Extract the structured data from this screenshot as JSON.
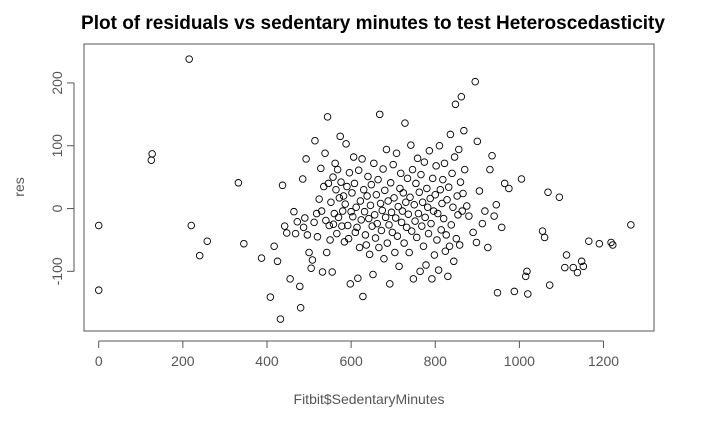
{
  "chart_data": {
    "type": "scatter",
    "title": "Plot of residuals vs sedentary minutes to test Heteroscedasticity",
    "xlabel": "Fitbit$SedentaryMinutes",
    "ylabel": "res",
    "xlim": [
      -35,
      1320
    ],
    "ylim": [
      -195,
      262
    ],
    "xticks": [
      "0",
      "200",
      "400",
      "600",
      "800",
      "1000",
      "1200"
    ],
    "xtick_values": [
      0,
      200,
      400,
      600,
      800,
      1000,
      1200
    ],
    "yticks": [
      "-100",
      "0",
      "100",
      "200"
    ],
    "ytick_values": [
      -100,
      0,
      100,
      200
    ],
    "grid": false,
    "marker": "open-circle",
    "marker_color": "#000000",
    "points": [
      [
        0,
        -27
      ],
      [
        0,
        -130
      ],
      [
        125,
        77
      ],
      [
        127,
        87
      ],
      [
        215,
        238
      ],
      [
        220,
        -27
      ],
      [
        240,
        -75
      ],
      [
        258,
        -52
      ],
      [
        332,
        41
      ],
      [
        345,
        -56
      ],
      [
        387,
        -79
      ],
      [
        408,
        -141
      ],
      [
        417,
        -60
      ],
      [
        425,
        -84
      ],
      [
        432,
        -176
      ],
      [
        437,
        37
      ],
      [
        442,
        -28
      ],
      [
        447,
        -39
      ],
      [
        455,
        -112
      ],
      [
        464,
        -5
      ],
      [
        468,
        -40
      ],
      [
        472,
        -21
      ],
      [
        478,
        -124
      ],
      [
        480,
        -158
      ],
      [
        485,
        47
      ],
      [
        487,
        -30
      ],
      [
        490,
        -15
      ],
      [
        493,
        79
      ],
      [
        496,
        -42
      ],
      [
        500,
        -70
      ],
      [
        505,
        -95
      ],
      [
        508,
        -82
      ],
      [
        512,
        -22
      ],
      [
        514,
        108
      ],
      [
        518,
        -8
      ],
      [
        520,
        -45
      ],
      [
        524,
        15
      ],
      [
        528,
        64
      ],
      [
        530,
        -4
      ],
      [
        532,
        -101
      ],
      [
        535,
        35
      ],
      [
        538,
        88
      ],
      [
        540,
        -19
      ],
      [
        542,
        -70
      ],
      [
        544,
        146
      ],
      [
        546,
        40
      ],
      [
        548,
        -27
      ],
      [
        550,
        -50
      ],
      [
        552,
        10
      ],
      [
        555,
        -101
      ],
      [
        557,
        50
      ],
      [
        558,
        -25
      ],
      [
        560,
        -8
      ],
      [
        562,
        72
      ],
      [
        564,
        30
      ],
      [
        566,
        -40
      ],
      [
        568,
        62
      ],
      [
        570,
        -14
      ],
      [
        572,
        17
      ],
      [
        574,
        115
      ],
      [
        576,
        42
      ],
      [
        578,
        -28
      ],
      [
        580,
        -4
      ],
      [
        582,
        20
      ],
      [
        584,
        -53
      ],
      [
        586,
        7
      ],
      [
        588,
        103
      ],
      [
        590,
        35
      ],
      [
        592,
        -27
      ],
      [
        594,
        -48
      ],
      [
        596,
        57
      ],
      [
        598,
        -120
      ],
      [
        600,
        -5
      ],
      [
        602,
        25
      ],
      [
        604,
        -13
      ],
      [
        606,
        82
      ],
      [
        608,
        40
      ],
      [
        610,
        -38
      ],
      [
        612,
        2
      ],
      [
        614,
        -30
      ],
      [
        616,
        -111
      ],
      [
        618,
        61
      ],
      [
        620,
        -62
      ],
      [
        622,
        12
      ],
      [
        624,
        -18
      ],
      [
        626,
        79
      ],
      [
        628,
        -140
      ],
      [
        630,
        30
      ],
      [
        632,
        -5
      ],
      [
        634,
        -42
      ],
      [
        636,
        -58
      ],
      [
        638,
        20
      ],
      [
        640,
        51
      ],
      [
        642,
        -16
      ],
      [
        644,
        -73
      ],
      [
        646,
        5
      ],
      [
        648,
        38
      ],
      [
        650,
        -28
      ],
      [
        652,
        -105
      ],
      [
        654,
        72
      ],
      [
        656,
        -10
      ],
      [
        658,
        -47
      ],
      [
        660,
        22
      ],
      [
        662,
        -24
      ],
      [
        664,
        46
      ],
      [
        666,
        -62
      ],
      [
        668,
        150
      ],
      [
        670,
        8
      ],
      [
        672,
        -35
      ],
      [
        674,
        -3
      ],
      [
        676,
        63
      ],
      [
        678,
        -80
      ],
      [
        680,
        29
      ],
      [
        682,
        -14
      ],
      [
        684,
        94
      ],
      [
        686,
        -55
      ],
      [
        688,
        12
      ],
      [
        690,
        -26
      ],
      [
        692,
        -120
      ],
      [
        694,
        41
      ],
      [
        696,
        -6
      ],
      [
        698,
        -38
      ],
      [
        700,
        70
      ],
      [
        702,
        17
      ],
      [
        704,
        -70
      ],
      [
        706,
        -15
      ],
      [
        708,
        88
      ],
      [
        710,
        -44
      ],
      [
        712,
        3
      ],
      [
        714,
        -92
      ],
      [
        716,
        32
      ],
      [
        718,
        56
      ],
      [
        720,
        -22
      ],
      [
        722,
        -4
      ],
      [
        724,
        25
      ],
      [
        726,
        -55
      ],
      [
        728,
        136
      ],
      [
        730,
        10
      ],
      [
        732,
        -30
      ],
      [
        734,
        48
      ],
      [
        736,
        -9
      ],
      [
        738,
        -70
      ],
      [
        740,
        18
      ],
      [
        742,
        101
      ],
      [
        744,
        -36
      ],
      [
        746,
        62
      ],
      [
        748,
        -112
      ],
      [
        750,
        6
      ],
      [
        752,
        -20
      ],
      [
        754,
        40
      ],
      [
        756,
        -46
      ],
      [
        758,
        80
      ],
      [
        760,
        -8
      ],
      [
        762,
        26
      ],
      [
        764,
        -100
      ],
      [
        766,
        54
      ],
      [
        768,
        -28
      ],
      [
        770,
        10
      ],
      [
        772,
        -60
      ],
      [
        774,
        74
      ],
      [
        776,
        -14
      ],
      [
        778,
        -90
      ],
      [
        780,
        32
      ],
      [
        782,
        2
      ],
      [
        784,
        -40
      ],
      [
        786,
        92
      ],
      [
        788,
        16
      ],
      [
        790,
        -24
      ],
      [
        792,
        -112
      ],
      [
        794,
        48
      ],
      [
        796,
        -4
      ],
      [
        798,
        -74
      ],
      [
        800,
        22
      ],
      [
        802,
        68
      ],
      [
        804,
        -50
      ],
      [
        806,
        -8
      ],
      [
        808,
        -98
      ],
      [
        810,
        100
      ],
      [
        812,
        30
      ],
      [
        814,
        -34
      ],
      [
        816,
        8
      ],
      [
        818,
        46
      ],
      [
        820,
        -16
      ],
      [
        822,
        72
      ],
      [
        824,
        -68
      ],
      [
        826,
        -42
      ],
      [
        828,
        14
      ],
      [
        830,
        -108
      ],
      [
        832,
        34
      ],
      [
        834,
        -60
      ],
      [
        836,
        118
      ],
      [
        838,
        -26
      ],
      [
        840,
        56
      ],
      [
        842,
        2
      ],
      [
        844,
        -84
      ],
      [
        846,
        82
      ],
      [
        848,
        166
      ],
      [
        850,
        -48
      ],
      [
        852,
        20
      ],
      [
        854,
        -10
      ],
      [
        856,
        94
      ],
      [
        858,
        -58
      ],
      [
        860,
        42
      ],
      [
        862,
        178
      ],
      [
        864,
        -4
      ],
      [
        866,
        24
      ],
      [
        868,
        124
      ],
      [
        870,
        62
      ],
      [
        875,
        4
      ],
      [
        880,
        -12
      ],
      [
        890,
        -38
      ],
      [
        895,
        202
      ],
      [
        898,
        -54
      ],
      [
        900,
        107
      ],
      [
        905,
        28
      ],
      [
        912,
        -24
      ],
      [
        918,
        -4
      ],
      [
        925,
        -62
      ],
      [
        930,
        62
      ],
      [
        935,
        84
      ],
      [
        940,
        -12
      ],
      [
        945,
        6
      ],
      [
        948,
        -134
      ],
      [
        958,
        -30
      ],
      [
        965,
        40
      ],
      [
        975,
        32
      ],
      [
        988,
        -132
      ],
      [
        1005,
        47
      ],
      [
        1015,
        -108
      ],
      [
        1018,
        -100
      ],
      [
        1020,
        -136
      ],
      [
        1055,
        -36
      ],
      [
        1060,
        -46
      ],
      [
        1068,
        26
      ],
      [
        1072,
        -122
      ],
      [
        1095,
        18
      ],
      [
        1108,
        -94
      ],
      [
        1112,
        -74
      ],
      [
        1128,
        -94
      ],
      [
        1138,
        -102
      ],
      [
        1148,
        -84
      ],
      [
        1152,
        -92
      ],
      [
        1165,
        -52
      ],
      [
        1190,
        -56
      ],
      [
        1218,
        -54
      ],
      [
        1222,
        -58
      ],
      [
        1265,
        -26
      ]
    ]
  }
}
